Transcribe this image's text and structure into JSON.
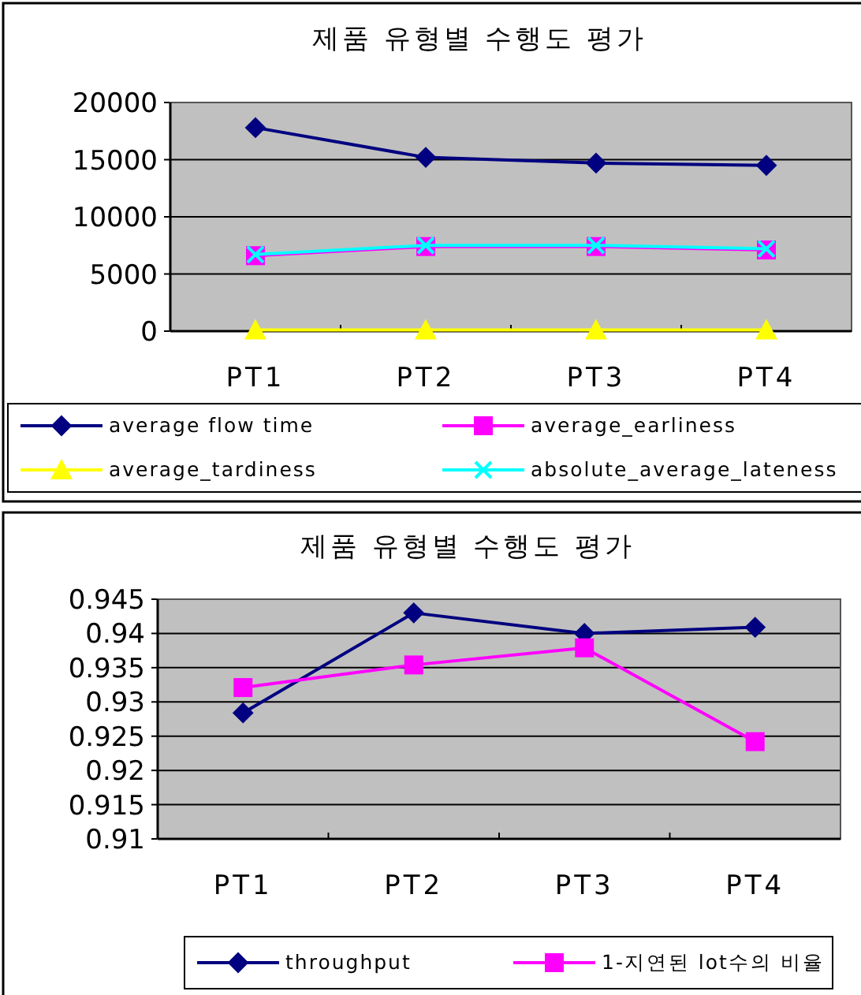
{
  "chart_data": [
    {
      "type": "line",
      "title": "제품 유형별 수행도 평가",
      "categories": [
        "PT1",
        "PT2",
        "PT3",
        "PT4"
      ],
      "ylim": [
        0,
        20000
      ],
      "yticks": [
        0,
        5000,
        10000,
        15000,
        20000
      ],
      "grid": "y",
      "legend": "bottom",
      "series": [
        {
          "name": "average flow time",
          "color": "#000080",
          "marker": "diamond",
          "values": [
            17800,
            15200,
            14700,
            14500
          ]
        },
        {
          "name": "average_earliness",
          "color": "#ff00ff",
          "marker": "square",
          "values": [
            6600,
            7400,
            7400,
            7100
          ]
        },
        {
          "name": "average_tardiness",
          "color": "#ffff00",
          "marker": "triangle",
          "values": [
            100,
            100,
            100,
            100
          ]
        },
        {
          "name": "absolute_average_lateness",
          "color": "#00ffff",
          "marker": "cross",
          "values": [
            6700,
            7500,
            7500,
            7200
          ]
        }
      ]
    },
    {
      "type": "line",
      "title": "제품 유형별 수행도 평가",
      "categories": [
        "PT1",
        "PT2",
        "PT3",
        "PT4"
      ],
      "ylim": [
        0.91,
        0.945
      ],
      "yticks": [
        0.91,
        0.915,
        0.92,
        0.925,
        0.93,
        0.935,
        0.94,
        0.945
      ],
      "grid": "y",
      "legend": "bottom",
      "series": [
        {
          "name": "throughput",
          "color": "#000080",
          "marker": "diamond",
          "values": [
            0.9284,
            0.943,
            0.94,
            0.9409
          ]
        },
        {
          "name": "1-지연된 lot수의 비율",
          "color": "#ff00ff",
          "marker": "square",
          "values": [
            0.9321,
            0.9354,
            0.9379,
            0.9242
          ]
        }
      ]
    }
  ]
}
